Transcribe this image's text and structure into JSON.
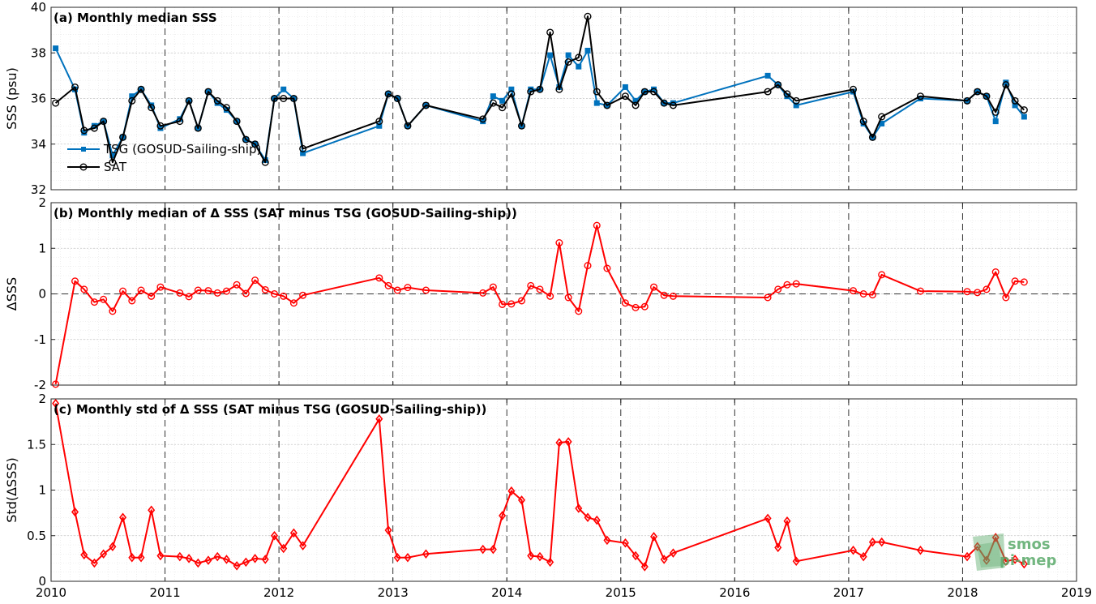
{
  "chart_data": [
    {
      "type": "line",
      "title": "(a) Monthly median SSS",
      "ylabel": "SSS (psu)",
      "xlim": [
        2010,
        2019
      ],
      "ylim": [
        32,
        40
      ],
      "yticks": [
        32,
        34,
        36,
        38,
        40
      ],
      "grid": true,
      "minor_grid": true,
      "year_dividers": "dashed",
      "legend": "inside-left",
      "series": [
        {
          "name": "TSG (GOSUD-Sailing-ship)",
          "color": "#0072bd",
          "marker": "square",
          "x": [
            2010.04,
            2010.21,
            2010.29,
            2010.38,
            2010.46,
            2010.54,
            2010.63,
            2010.71,
            2010.79,
            2010.88,
            2010.96,
            2011.13,
            2011.21,
            2011.29,
            2011.38,
            2011.46,
            2011.54,
            2011.63,
            2011.71,
            2011.79,
            2011.88,
            2011.96,
            2012.04,
            2012.13,
            2012.21,
            2012.88,
            2012.96,
            2013.04,
            2013.13,
            2013.29,
            2013.79,
            2013.88,
            2013.96,
            2014.04,
            2014.13,
            2014.21,
            2014.29,
            2014.38,
            2014.46,
            2014.54,
            2014.63,
            2014.71,
            2014.79,
            2014.88,
            2015.04,
            2015.13,
            2015.21,
            2015.29,
            2015.38,
            2015.46,
            2016.29,
            2016.38,
            2016.46,
            2016.54,
            2017.04,
            2017.13,
            2017.21,
            2017.29,
            2017.63,
            2018.04,
            2018.13,
            2018.21,
            2018.29,
            2018.38,
            2018.46,
            2018.54
          ],
          "y": [
            38.2,
            36.4,
            34.5,
            34.8,
            35.0,
            33.5,
            34.3,
            36.1,
            36.4,
            35.7,
            34.7,
            35.1,
            35.9,
            34.7,
            36.3,
            35.8,
            35.5,
            35.0,
            34.2,
            34.0,
            33.3,
            36.0,
            36.4,
            36.0,
            33.6,
            34.8,
            36.2,
            36.0,
            34.8,
            35.7,
            35.0,
            36.1,
            35.9,
            36.4,
            34.8,
            36.4,
            36.4,
            37.9,
            36.5,
            37.9,
            37.4,
            38.1,
            35.8,
            35.7,
            36.5,
            35.9,
            36.3,
            36.4,
            35.8,
            35.8,
            37.0,
            36.6,
            36.1,
            35.7,
            36.3,
            34.9,
            34.3,
            34.9,
            36.0,
            35.9,
            36.3,
            36.1,
            35.0,
            36.7,
            35.7,
            35.2
          ]
        },
        {
          "name": "SAT",
          "color": "#000000",
          "marker": "circle",
          "x": [
            2010.04,
            2010.21,
            2010.29,
            2010.38,
            2010.46,
            2010.54,
            2010.63,
            2010.71,
            2010.79,
            2010.88,
            2010.96,
            2011.13,
            2011.21,
            2011.29,
            2011.38,
            2011.46,
            2011.54,
            2011.63,
            2011.71,
            2011.79,
            2011.88,
            2011.96,
            2012.04,
            2012.13,
            2012.21,
            2012.88,
            2012.96,
            2013.04,
            2013.13,
            2013.29,
            2013.79,
            2013.88,
            2013.96,
            2014.04,
            2014.13,
            2014.21,
            2014.29,
            2014.38,
            2014.46,
            2014.54,
            2014.63,
            2014.71,
            2014.79,
            2014.88,
            2015.04,
            2015.13,
            2015.21,
            2015.29,
            2015.38,
            2015.46,
            2016.29,
            2016.38,
            2016.46,
            2016.54,
            2017.04,
            2017.13,
            2017.21,
            2017.29,
            2017.63,
            2018.04,
            2018.13,
            2018.21,
            2018.29,
            2018.38,
            2018.46,
            2018.54
          ],
          "y": [
            35.8,
            36.5,
            34.6,
            34.7,
            35.0,
            33.2,
            34.3,
            35.9,
            36.4,
            35.6,
            34.8,
            35.0,
            35.9,
            34.7,
            36.3,
            35.9,
            35.6,
            35.0,
            34.2,
            34.0,
            33.2,
            36.0,
            36.0,
            36.0,
            33.8,
            35.0,
            36.2,
            36.0,
            34.8,
            35.7,
            35.1,
            35.8,
            35.6,
            36.2,
            34.8,
            36.3,
            36.4,
            38.9,
            36.4,
            37.6,
            37.8,
            39.6,
            36.3,
            35.7,
            36.1,
            35.7,
            36.3,
            36.3,
            35.8,
            35.7,
            36.3,
            36.6,
            36.2,
            35.9,
            36.4,
            35.0,
            34.3,
            35.2,
            36.1,
            35.9,
            36.3,
            36.1,
            35.4,
            36.6,
            35.9,
            35.5
          ]
        }
      ]
    },
    {
      "type": "line",
      "title": "(b) Monthly median of Δ SSS (SAT minus TSG (GOSUD-Sailing-ship))",
      "ylabel": "ΔSSS",
      "xlim": [
        2010,
        2019
      ],
      "ylim": [
        -2,
        2
      ],
      "yticks": [
        -2,
        -1,
        0,
        1,
        2
      ],
      "grid": true,
      "zero_line": "dashed",
      "series": [
        {
          "color": "#ff0000",
          "marker": "circle",
          "x": [
            2010.04,
            2010.21,
            2010.29,
            2010.38,
            2010.46,
            2010.54,
            2010.63,
            2010.71,
            2010.79,
            2010.88,
            2010.96,
            2011.13,
            2011.21,
            2011.29,
            2011.38,
            2011.46,
            2011.54,
            2011.63,
            2011.71,
            2011.79,
            2011.88,
            2011.96,
            2012.04,
            2012.13,
            2012.21,
            2012.88,
            2012.96,
            2013.04,
            2013.13,
            2013.29,
            2013.79,
            2013.88,
            2013.96,
            2014.04,
            2014.13,
            2014.21,
            2014.29,
            2014.38,
            2014.46,
            2014.54,
            2014.63,
            2014.71,
            2014.79,
            2014.88,
            2015.04,
            2015.13,
            2015.21,
            2015.29,
            2015.38,
            2015.46,
            2016.29,
            2016.38,
            2016.46,
            2016.54,
            2017.04,
            2017.13,
            2017.21,
            2017.29,
            2017.63,
            2018.04,
            2018.13,
            2018.21,
            2018.29,
            2018.38,
            2018.46,
            2018.54
          ],
          "y": [
            -1.98,
            0.28,
            0.1,
            -0.18,
            -0.12,
            -0.38,
            0.06,
            -0.15,
            0.08,
            -0.05,
            0.15,
            0.02,
            -0.06,
            0.08,
            0.07,
            0.02,
            0.06,
            0.2,
            0.01,
            0.3,
            0.09,
            0.0,
            -0.05,
            -0.2,
            -0.03,
            0.35,
            0.18,
            0.08,
            0.14,
            0.08,
            0.02,
            0.15,
            -0.23,
            -0.22,
            -0.15,
            0.18,
            0.1,
            -0.05,
            1.12,
            -0.08,
            -0.38,
            0.62,
            1.5,
            0.56,
            -0.2,
            -0.3,
            -0.28,
            0.15,
            -0.03,
            -0.05,
            -0.08,
            0.1,
            0.2,
            0.22,
            0.07,
            0.0,
            -0.02,
            0.42,
            0.06,
            0.05,
            0.03,
            0.1,
            0.48,
            -0.08,
            0.28,
            0.26
          ]
        }
      ]
    },
    {
      "type": "line",
      "title": "(c) Monthly std of Δ SSS (SAT minus TSG (GOSUD-Sailing-ship))",
      "ylabel": "Std(ΔSSS)",
      "xlim": [
        2010,
        2019
      ],
      "ylim": [
        0,
        2
      ],
      "yticks": [
        0,
        0.5,
        1,
        1.5,
        2
      ],
      "xticks": [
        2010,
        2011,
        2012,
        2013,
        2014,
        2015,
        2016,
        2017,
        2018,
        2019
      ],
      "grid": true,
      "series": [
        {
          "color": "#ff0000",
          "marker": "diamond",
          "x": [
            2010.04,
            2010.21,
            2010.29,
            2010.38,
            2010.46,
            2010.54,
            2010.63,
            2010.71,
            2010.79,
            2010.88,
            2010.96,
            2011.13,
            2011.21,
            2011.29,
            2011.38,
            2011.46,
            2011.54,
            2011.63,
            2011.71,
            2011.79,
            2011.88,
            2011.96,
            2012.04,
            2012.13,
            2012.21,
            2012.88,
            2012.96,
            2013.04,
            2013.13,
            2013.29,
            2013.79,
            2013.88,
            2013.96,
            2014.04,
            2014.13,
            2014.21,
            2014.29,
            2014.38,
            2014.46,
            2014.54,
            2014.63,
            2014.71,
            2014.79,
            2014.88,
            2015.04,
            2015.13,
            2015.21,
            2015.29,
            2015.38,
            2015.46,
            2016.29,
            2016.38,
            2016.46,
            2016.54,
            2017.04,
            2017.13,
            2017.21,
            2017.29,
            2017.63,
            2018.04,
            2018.13,
            2018.21,
            2018.29,
            2018.38,
            2018.46,
            2018.54
          ],
          "y": [
            1.95,
            0.76,
            0.29,
            0.2,
            0.3,
            0.38,
            0.7,
            0.26,
            0.26,
            0.78,
            0.28,
            0.27,
            0.25,
            0.2,
            0.23,
            0.27,
            0.24,
            0.17,
            0.21,
            0.25,
            0.24,
            0.5,
            0.36,
            0.53,
            0.39,
            1.78,
            0.56,
            0.26,
            0.26,
            0.3,
            0.35,
            0.35,
            0.72,
            0.99,
            0.89,
            0.28,
            0.27,
            0.21,
            1.52,
            1.53,
            0.8,
            0.7,
            0.67,
            0.45,
            0.42,
            0.28,
            0.16,
            0.49,
            0.24,
            0.31,
            0.69,
            0.37,
            0.66,
            0.22,
            0.34,
            0.27,
            0.43,
            0.43,
            0.34,
            0.27,
            0.38,
            0.23,
            0.48,
            0.22,
            0.24,
            0.19
          ]
        }
      ]
    }
  ],
  "logo": {
    "line1": "smos",
    "line2": "pi-mep",
    "color": "#5aaa6a"
  }
}
